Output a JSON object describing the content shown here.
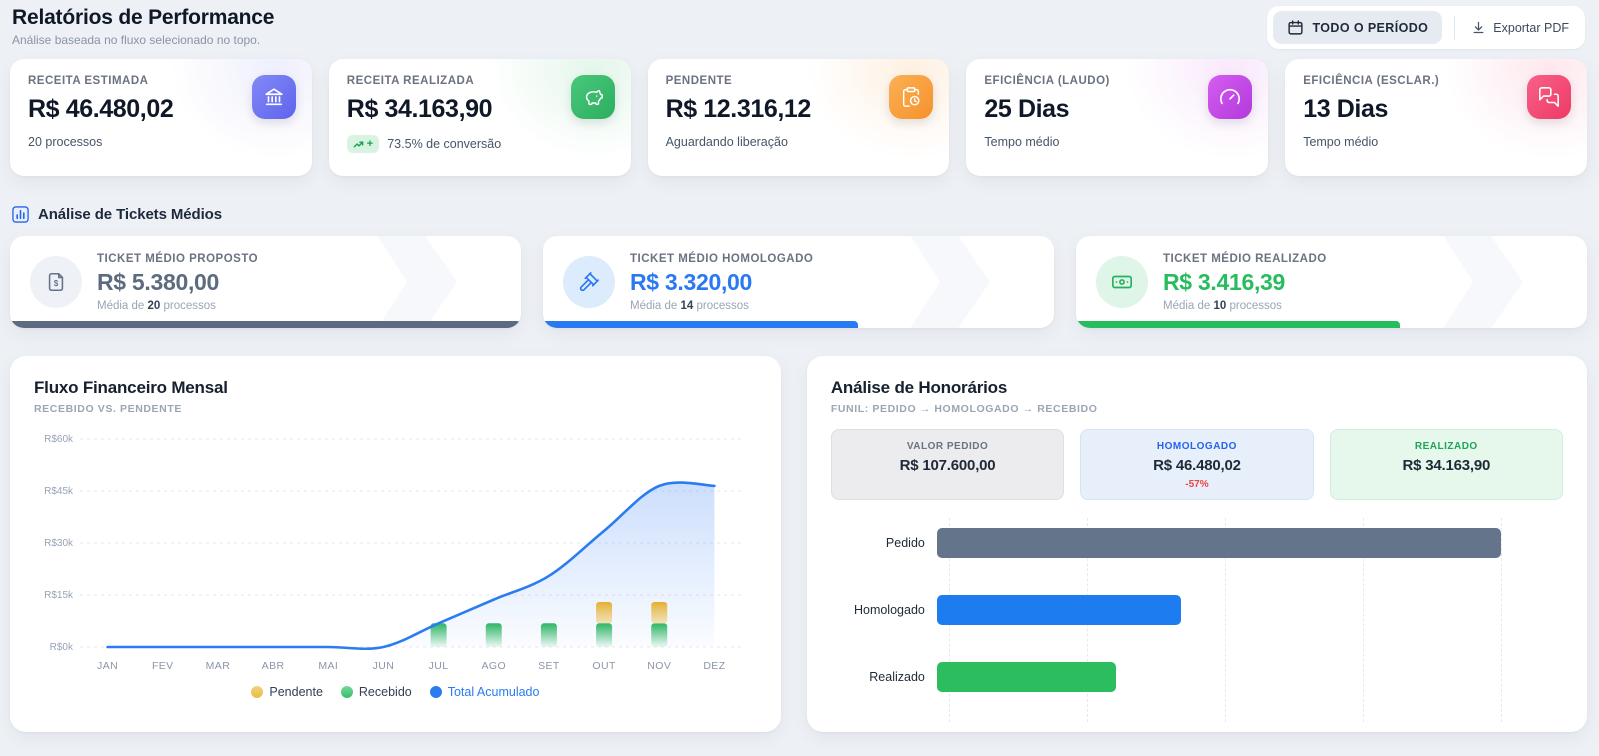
{
  "header": {
    "title": "Relatórios de Performance",
    "subtitle": "Análise baseada no fluxo selecionado no topo.",
    "period_button": "TODO O PERÍODO",
    "export_button": "Exportar PDF"
  },
  "kpis": [
    {
      "label": "RECEITA ESTIMADA",
      "value": "R$ 46.480,02",
      "sub": "20 processos",
      "icon": "bank-icon",
      "accent": "#6366f1"
    },
    {
      "label": "RECEITA REALIZADA",
      "value": "R$ 34.163,90",
      "badge_plus": "+",
      "sub": "73.5% de conversão",
      "icon": "piggy-bank-icon",
      "accent": "#2fbd68"
    },
    {
      "label": "PENDENTE",
      "value": "R$ 12.316,12",
      "sub": "Aguardando liberação",
      "icon": "clipboard-clock-icon",
      "accent": "#f79e3d"
    },
    {
      "label": "EFICIÊNCIA (LAUDO)",
      "value": "25 Dias",
      "sub": "Tempo médio",
      "icon": "gauge-icon",
      "accent": "#c94be4"
    },
    {
      "label": "EFICIÊNCIA (ESCLAR.)",
      "value": "13 Dias",
      "sub": "Tempo médio",
      "icon": "chat-bubbles-icon",
      "accent": "#f2436c"
    }
  ],
  "tickets": {
    "section_title": "Análise de Tickets Médios",
    "section_icon": "bar-chart-icon",
    "cards": [
      {
        "label": "TICKET MÉDIO PROPOSTO",
        "value": "R$ 5.380,00",
        "amount": 5380,
        "sub_prefix": "Média de",
        "count": "20",
        "sub_suffix": "processos",
        "accent": "#5d6b80",
        "icon": "document-dollar-icon"
      },
      {
        "label": "TICKET MÉDIO HOMOLOGADO",
        "value": "R$ 3.320,00",
        "amount": 3320,
        "sub_prefix": "Média de",
        "count": "14",
        "sub_suffix": "processos",
        "accent": "#2979f2",
        "icon": "gavel-icon"
      },
      {
        "label": "TICKET MÉDIO REALIZADO",
        "value": "R$ 3.416,39",
        "amount": 3416.39,
        "sub_prefix": "Média de",
        "count": "10",
        "sub_suffix": "processos",
        "accent": "#27bd5e",
        "icon": "banknote-icon"
      }
    ]
  },
  "chart_data": [
    {
      "type": "line",
      "title": "Fluxo Financeiro Mensal",
      "subtitle": "RECEBIDO VS. PENDENTE",
      "categories": [
        "JAN",
        "FEV",
        "MAR",
        "ABR",
        "MAI",
        "JUN",
        "JUL",
        "AGO",
        "SET",
        "OUT",
        "NOV",
        "DEZ"
      ],
      "y_tick_labels": [
        "R$0k",
        "R$15k",
        "R$30k",
        "R$45k",
        "R$60k"
      ],
      "y_tick_values": [
        0,
        15000,
        30000,
        45000,
        60000
      ],
      "ylim": [
        0,
        60000
      ],
      "grid": "horizontal-dashed",
      "legend_position": "bottom-center",
      "series": [
        {
          "name": "Pendente",
          "type": "bar",
          "color": "#e9bd3f",
          "values": [
            0,
            0,
            0,
            0,
            0,
            0,
            0,
            0,
            0,
            6158,
            6158,
            0
          ]
        },
        {
          "name": "Recebido",
          "type": "bar",
          "color": "#35c06a",
          "values": [
            0,
            0,
            0,
            0,
            0,
            0,
            6833,
            6833,
            6833,
            6833,
            6832,
            0
          ]
        },
        {
          "name": "Total Acumulado",
          "type": "line",
          "color": "#2b7cf0",
          "values": [
            0,
            0,
            0,
            0,
            0,
            0,
            6833,
            13666,
            20499,
            33490,
            46480,
            46480
          ]
        }
      ]
    },
    {
      "type": "bar",
      "title": "Análise de Honorários",
      "subtitle": "FUNIL: PEDIDO → HOMOLOGADO → RECEBIDO",
      "boxes": [
        {
          "label": "VALOR PEDIDO",
          "value": "R$ 107.600,00"
        },
        {
          "label": "HOMOLOGADO",
          "value": "R$ 46.480,02",
          "delta": "-57%"
        },
        {
          "label": "REALIZADO",
          "value": "R$ 34.163,90"
        }
      ],
      "categories": [
        "Pedido",
        "Homologado",
        "Realizado"
      ],
      "values": [
        107600,
        46480.02,
        34163.9
      ],
      "colors": [
        "#64748b",
        "#1d7cf0",
        "#2bbd5e"
      ],
      "orientation": "horizontal",
      "grid": "vertical-dashed"
    }
  ]
}
